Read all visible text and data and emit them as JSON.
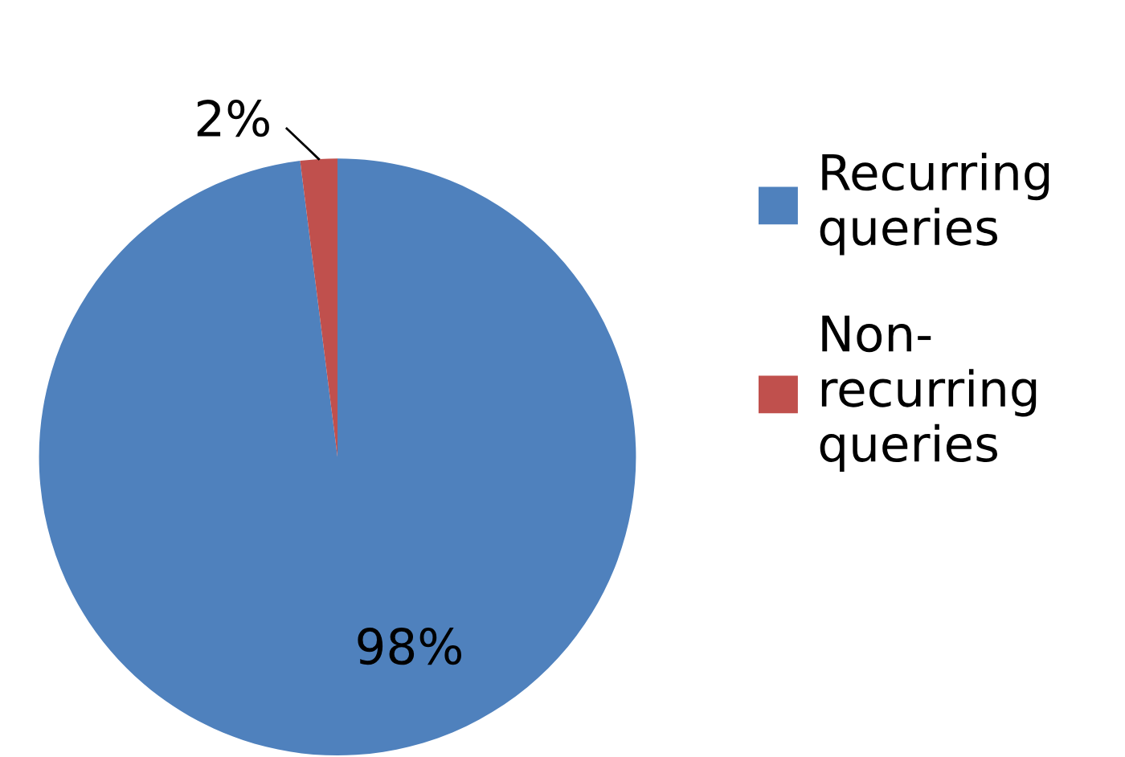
{
  "chart_data": {
    "type": "pie",
    "categories": [
      "Recurring\nqueries",
      "Non-\nrecurring\nqueries"
    ],
    "values": [
      98,
      2
    ],
    "colors": [
      "#4f81bd",
      "#c0504d"
    ],
    "value_labels": [
      "98%",
      "2%"
    ],
    "legend": "right"
  }
}
